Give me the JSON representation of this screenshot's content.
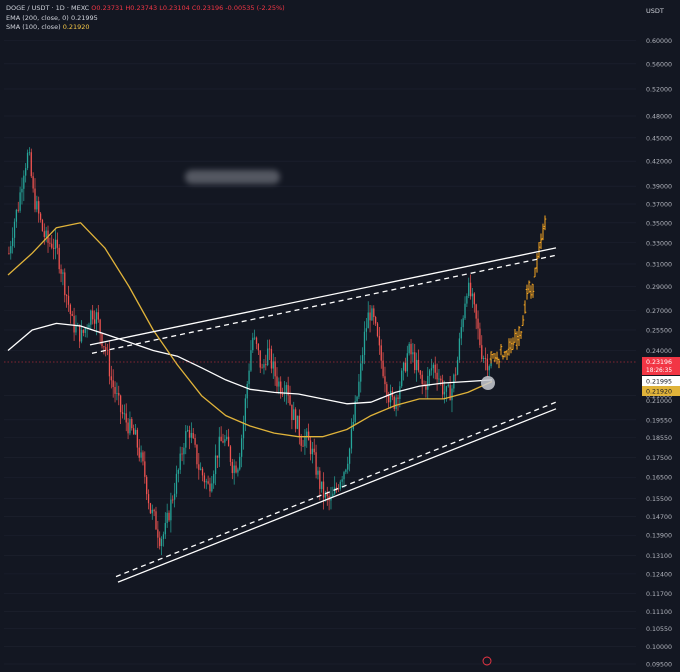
{
  "header": {
    "symbol": "DOGE / USDT · 1D · MEXC",
    "open": "O0.23731",
    "high": "H0.23743",
    "low": "L0.23104",
    "close": "C0.23196",
    "change": "-0.00535 (-2.25%)",
    "ema_label": "EMA (200, close, 0)",
    "ema_value": "0.21995",
    "sma_label": "SMA (100, close)",
    "sma_value": "0.21920"
  },
  "axis": {
    "unit": "USDT"
  },
  "price_tags": {
    "last_price": "0.23196",
    "last_countdown": "18:26:35",
    "ema_tag": "0.21995",
    "sma_tag": "0.21920",
    "extra_tick": "0.21000"
  },
  "colors": {
    "background": "#131722",
    "up": "#26a69a",
    "down": "#ef5350",
    "ema": "#ffffff",
    "sma": "#e0b33a",
    "projection": "#f5a623",
    "trendline": "#ffffff",
    "last_price": "#f23645"
  },
  "chart_data": {
    "type": "candlestick",
    "symbol": "DOGE / USDT",
    "interval": "1D",
    "exchange": "MEXC",
    "y_scale": "log",
    "ylim": [
      0.095,
      0.63
    ],
    "yticks": [
      0.6,
      0.56,
      0.52,
      0.48,
      0.45,
      0.42,
      0.39,
      0.37,
      0.35,
      0.33,
      0.31,
      0.29,
      0.27,
      0.255,
      0.24,
      0.21,
      0.1955,
      0.1855,
      0.175,
      0.165,
      0.155,
      0.147,
      0.139,
      0.131,
      0.124,
      0.117,
      0.111,
      0.1055,
      0.1,
      0.095
    ],
    "ytick_labels": [
      "0.60000",
      "0.56000",
      "0.52000",
      "0.48000",
      "0.45000",
      "0.42000",
      "0.39000",
      "0.37000",
      "0.35000",
      "0.33000",
      "0.31000",
      "0.29000",
      "0.27000",
      "0.25500",
      "0.24000",
      "0.21000",
      "0.19550",
      "0.18550",
      "0.17500",
      "0.16500",
      "0.15500",
      "0.14700",
      "0.13900",
      "0.13100",
      "0.12400",
      "0.11700",
      "0.11100",
      "0.10550",
      "0.10000",
      "0.09500"
    ],
    "price_path": [
      0.32,
      0.35,
      0.37,
      0.41,
      0.43,
      0.38,
      0.36,
      0.34,
      0.33,
      0.33,
      0.32,
      0.3,
      0.28,
      0.26,
      0.255,
      0.25,
      0.26,
      0.27,
      0.265,
      0.25,
      0.24,
      0.22,
      0.21,
      0.2,
      0.195,
      0.19,
      0.185,
      0.175,
      0.165,
      0.15,
      0.145,
      0.138,
      0.14,
      0.15,
      0.16,
      0.17,
      0.185,
      0.19,
      0.18,
      0.17,
      0.165,
      0.16,
      0.17,
      0.18,
      0.185,
      0.18,
      0.17,
      0.172,
      0.19,
      0.22,
      0.25,
      0.24,
      0.225,
      0.24,
      0.23,
      0.22,
      0.215,
      0.22,
      0.2,
      0.195,
      0.185,
      0.185,
      0.18,
      0.17,
      0.16,
      0.155,
      0.153,
      0.158,
      0.165,
      0.17,
      0.18,
      0.2,
      0.22,
      0.25,
      0.27,
      0.26,
      0.24,
      0.225,
      0.21,
      0.205,
      0.215,
      0.225,
      0.24,
      0.235,
      0.225,
      0.215,
      0.22,
      0.23,
      0.225,
      0.215,
      0.21,
      0.215,
      0.23,
      0.26,
      0.29,
      0.28,
      0.26,
      0.24,
      0.233,
      0.232
    ],
    "ema": {
      "name": "EMA (200, close, 0)",
      "x": [
        0,
        0.05,
        0.1,
        0.15,
        0.2,
        0.25,
        0.3,
        0.35,
        0.4,
        0.45,
        0.5,
        0.55,
        0.6,
        0.65,
        0.7,
        0.75,
        0.8,
        0.85,
        0.9,
        0.95,
        1
      ],
      "values": [
        0.24,
        0.255,
        0.26,
        0.258,
        0.252,
        0.246,
        0.24,
        0.236,
        0.228,
        0.22,
        0.214,
        0.212,
        0.211,
        0.208,
        0.205,
        0.206,
        0.212,
        0.216,
        0.218,
        0.219,
        0.22
      ]
    },
    "sma": {
      "name": "SMA (100, close)",
      "x": [
        0,
        0.05,
        0.1,
        0.15,
        0.2,
        0.25,
        0.3,
        0.35,
        0.4,
        0.45,
        0.5,
        0.55,
        0.6,
        0.65,
        0.7,
        0.75,
        0.8,
        0.85,
        0.9,
        0.95,
        1
      ],
      "values": [
        0.3,
        0.32,
        0.345,
        0.35,
        0.325,
        0.29,
        0.255,
        0.23,
        0.21,
        0.198,
        0.192,
        0.188,
        0.186,
        0.186,
        0.19,
        0.198,
        0.204,
        0.208,
        0.208,
        0.212,
        0.219
      ]
    },
    "projection_path": [
      0.233,
      0.236,
      0.232,
      0.238,
      0.235,
      0.242,
      0.239,
      0.246,
      0.248,
      0.255,
      0.27,
      0.29,
      0.28,
      0.3,
      0.315,
      0.33,
      0.35
    ],
    "last_price": 0.23196,
    "annotations": [
      "rising wedge upper trendline",
      "rising wedge lower trendline",
      "circle marker at EMA touch"
    ]
  }
}
